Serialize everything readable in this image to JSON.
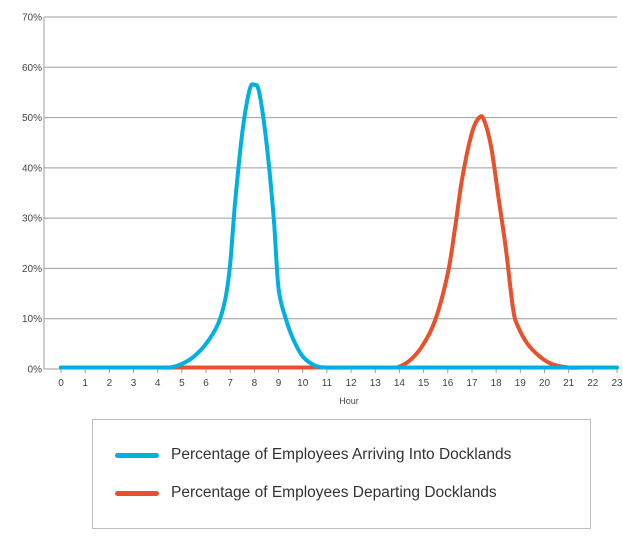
{
  "chart_data": {
    "type": "line",
    "xlabel": "Hour",
    "ylabel": "",
    "x_ticks": [
      "0",
      "1",
      "2",
      "3",
      "4",
      "5",
      "6",
      "7",
      "8",
      "9",
      "10",
      "11",
      "12",
      "13",
      "14",
      "15",
      "16",
      "17",
      "18",
      "19",
      "20",
      "21",
      "22",
      "23"
    ],
    "y_ticks": [
      "0%",
      "10%",
      "20%",
      "30%",
      "40%",
      "50%",
      "60%",
      "70%"
    ],
    "xlim": [
      0,
      23
    ],
    "ylim": [
      0,
      70
    ],
    "grid": "horizontal",
    "legend_position": "bottom",
    "series": [
      {
        "name": "Percentage of Employees Arriving Into Docklands",
        "color": "#00b0e0",
        "x": [
          0,
          4,
          4.5,
          5,
          5.5,
          6,
          6.5,
          6.8,
          7,
          7.2,
          7.5,
          7.8,
          8,
          8.2,
          8.5,
          8.8,
          9,
          9.3,
          9.6,
          10,
          10.5,
          11,
          12,
          14,
          16,
          18,
          20,
          22,
          23
        ],
        "y": [
          0,
          0,
          0.2,
          1,
          2.5,
          5,
          9,
          14,
          21,
          33,
          47,
          55.5,
          56.5,
          55,
          45,
          30,
          16,
          10,
          6,
          2.5,
          0.7,
          0,
          0,
          0,
          0,
          0,
          0,
          0,
          0
        ]
      },
      {
        "name": "Percentage of Employees Departing Docklands",
        "color": "#e8512b",
        "x": [
          0,
          5,
          10,
          13.5,
          14,
          14.5,
          15,
          15.5,
          16,
          16.3,
          16.6,
          17,
          17.3,
          17.5,
          17.8,
          18.1,
          18.4,
          18.7,
          18.9,
          19.3,
          19.8,
          20.3,
          21,
          21.5,
          22
        ],
        "y": [
          0,
          0,
          0,
          0,
          0.5,
          2,
          5,
          10,
          19,
          28,
          38,
          47,
          50,
          49.5,
          44,
          34,
          24,
          12,
          8.5,
          5,
          2.5,
          1,
          0.2,
          0,
          0
        ]
      }
    ]
  }
}
